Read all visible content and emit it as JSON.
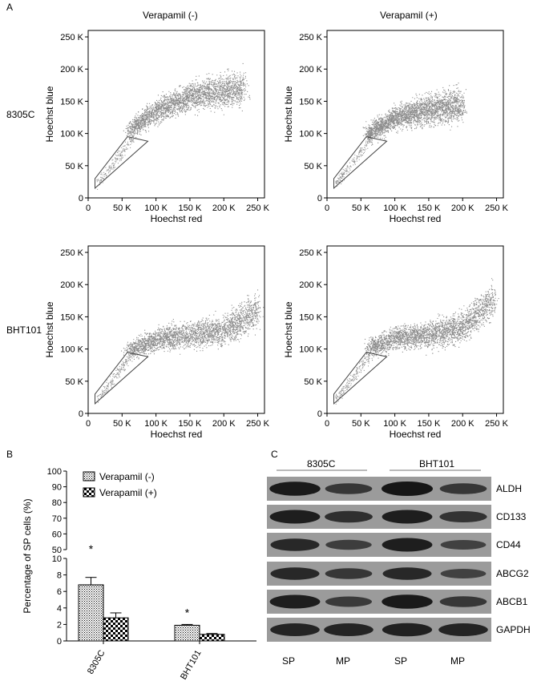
{
  "figure": {
    "panel_labels": {
      "a": "A",
      "b": "B",
      "c": "C"
    },
    "panel_a": {
      "col_titles": [
        "Verapamil (-)",
        "Verapamil (+)"
      ],
      "row_titles": [
        "8305C",
        "BHT101"
      ],
      "xlabel": "Hoechst red",
      "ylabel": "Hoechst blue",
      "tick_labels": [
        "0",
        "50 K",
        "100 K",
        "150 K",
        "200 K",
        "250 K"
      ]
    },
    "panel_b": {
      "ylabel": "Percentage of  SP cells (%)",
      "legend": [
        "Verapamil (-)",
        "Verapamil (+)"
      ],
      "significance_marker": "*"
    },
    "panel_c": {
      "group_labels": [
        "8305C",
        "BHT101"
      ],
      "lane_labels": [
        "SP",
        "MP",
        "SP",
        "MP"
      ],
      "proteins": [
        "ALDH",
        "CD133",
        "CD44",
        "ABCG2",
        "ABCB1",
        "GAPDH"
      ]
    }
  },
  "chart_data": [
    {
      "type": "scatter",
      "panel": "A",
      "row": "8305C",
      "col": "Verapamil (-)",
      "xlim": [
        0,
        260000
      ],
      "ylim": [
        0,
        260000
      ],
      "cloud_profile": [
        [
          60000,
          105000
        ],
        [
          100000,
          135000
        ],
        [
          150000,
          158000
        ],
        [
          200000,
          168000
        ],
        [
          230000,
          170000
        ]
      ],
      "gate_polygon": [
        [
          10000,
          15000
        ],
        [
          10000,
          30000
        ],
        [
          58000,
          95000
        ],
        [
          88000,
          88000
        ]
      ]
    },
    {
      "type": "scatter",
      "panel": "A",
      "row": "8305C",
      "col": "Verapamil (+)",
      "xlim": [
        0,
        260000
      ],
      "ylim": [
        0,
        260000
      ],
      "cloud_profile": [
        [
          60000,
          100000
        ],
        [
          100000,
          125000
        ],
        [
          150000,
          138000
        ],
        [
          200000,
          145000
        ]
      ],
      "gate_polygon": [
        [
          10000,
          15000
        ],
        [
          10000,
          30000
        ],
        [
          58000,
          95000
        ],
        [
          88000,
          88000
        ]
      ]
    },
    {
      "type": "scatter",
      "panel": "A",
      "row": "BHT101",
      "col": "Verapamil (-)",
      "xlim": [
        0,
        260000
      ],
      "ylim": [
        0,
        260000
      ],
      "cloud_profile": [
        [
          60000,
          98000
        ],
        [
          100000,
          115000
        ],
        [
          150000,
          122000
        ],
        [
          200000,
          130000
        ],
        [
          250000,
          160000
        ]
      ],
      "gate_polygon": [
        [
          10000,
          15000
        ],
        [
          10000,
          30000
        ],
        [
          58000,
          95000
        ],
        [
          88000,
          88000
        ]
      ]
    },
    {
      "type": "scatter",
      "panel": "A",
      "row": "BHT101",
      "col": "Verapamil (+)",
      "xlim": [
        0,
        260000
      ],
      "ylim": [
        0,
        260000
      ],
      "cloud_profile": [
        [
          60000,
          100000
        ],
        [
          100000,
          118000
        ],
        [
          150000,
          122000
        ],
        [
          200000,
          135000
        ],
        [
          245000,
          175000
        ]
      ],
      "gate_polygon": [
        [
          10000,
          15000
        ],
        [
          10000,
          30000
        ],
        [
          58000,
          95000
        ],
        [
          88000,
          88000
        ]
      ]
    },
    {
      "type": "bar",
      "panel": "B",
      "categories": [
        "8305C",
        "BHT101"
      ],
      "series": [
        {
          "name": "Verapamil (-)",
          "values": [
            6.8,
            1.9
          ],
          "errors": [
            0.9,
            0.1
          ]
        },
        {
          "name": "Verapamil (+)",
          "values": [
            2.8,
            0.8
          ],
          "errors": [
            0.6,
            0.1
          ]
        }
      ],
      "y_axis_broken": true,
      "y_ticks_lower": [
        0,
        2,
        4,
        6,
        8,
        10
      ],
      "y_ticks_upper": [
        50,
        60,
        70,
        80,
        90,
        100
      ],
      "significant": [
        "8305C",
        "BHT101"
      ]
    }
  ]
}
